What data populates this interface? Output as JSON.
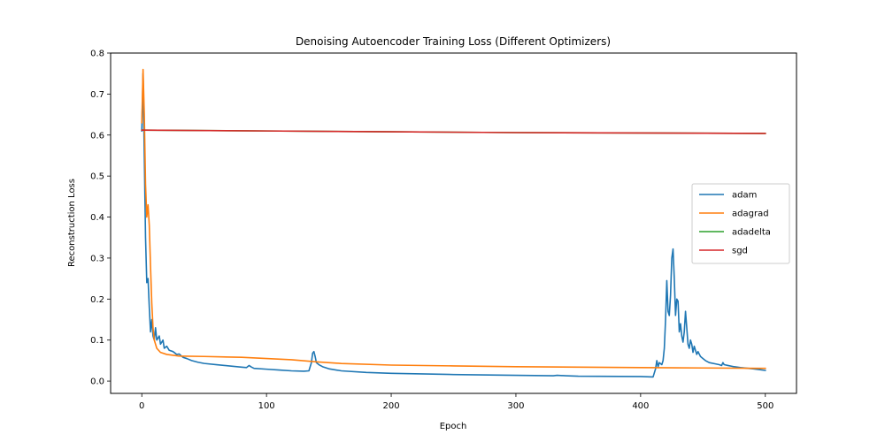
{
  "chart_data": {
    "type": "line",
    "title": "Denoising Autoencoder Training Loss (Different Optimizers)",
    "xlabel": "Epoch",
    "ylabel": "Reconstruction Loss",
    "xlim": [
      -25,
      525
    ],
    "ylim": [
      -0.03,
      0.8
    ],
    "xticks": [
      0,
      100,
      200,
      300,
      400,
      500
    ],
    "yticks": [
      0.0,
      0.1,
      0.2,
      0.3,
      0.4,
      0.5,
      0.6,
      0.7,
      0.8
    ],
    "x_tick_labels": [
      "0",
      "100",
      "200",
      "300",
      "400",
      "500"
    ],
    "y_tick_labels": [
      "0.0",
      "0.1",
      "0.2",
      "0.3",
      "0.4",
      "0.5",
      "0.6",
      "0.7",
      "0.8"
    ],
    "grid": false,
    "legend_position": "center-right",
    "series": [
      {
        "name": "adam",
        "color": "#1f77b4",
        "points": [
          [
            0,
            0.61
          ],
          [
            1,
            0.75
          ],
          [
            2,
            0.55
          ],
          [
            3,
            0.35
          ],
          [
            4,
            0.24
          ],
          [
            5,
            0.25
          ],
          [
            6,
            0.18
          ],
          [
            7,
            0.12
          ],
          [
            8,
            0.15
          ],
          [
            9,
            0.11
          ],
          [
            10,
            0.1
          ],
          [
            11,
            0.13
          ],
          [
            12,
            0.1
          ],
          [
            14,
            0.11
          ],
          [
            15,
            0.09
          ],
          [
            17,
            0.1
          ],
          [
            18,
            0.08
          ],
          [
            20,
            0.085
          ],
          [
            22,
            0.075
          ],
          [
            25,
            0.072
          ],
          [
            28,
            0.065
          ],
          [
            30,
            0.066
          ],
          [
            33,
            0.058
          ],
          [
            36,
            0.055
          ],
          [
            40,
            0.05
          ],
          [
            45,
            0.046
          ],
          [
            50,
            0.043
          ],
          [
            60,
            0.04
          ],
          [
            70,
            0.037
          ],
          [
            80,
            0.034
          ],
          [
            84,
            0.033
          ],
          [
            86,
            0.038
          ],
          [
            88,
            0.034
          ],
          [
            90,
            0.031
          ],
          [
            100,
            0.029
          ],
          [
            110,
            0.027
          ],
          [
            120,
            0.025
          ],
          [
            130,
            0.024
          ],
          [
            134,
            0.025
          ],
          [
            136,
            0.045
          ],
          [
            137,
            0.068
          ],
          [
            138,
            0.072
          ],
          [
            139,
            0.06
          ],
          [
            140,
            0.045
          ],
          [
            142,
            0.04
          ],
          [
            145,
            0.035
          ],
          [
            150,
            0.03
          ],
          [
            160,
            0.025
          ],
          [
            180,
            0.021
          ],
          [
            200,
            0.019
          ],
          [
            250,
            0.016
          ],
          [
            300,
            0.014
          ],
          [
            330,
            0.013
          ],
          [
            333,
            0.014
          ],
          [
            340,
            0.013
          ],
          [
            350,
            0.012
          ],
          [
            400,
            0.011
          ],
          [
            410,
            0.01
          ],
          [
            412,
            0.03
          ],
          [
            413,
            0.05
          ],
          [
            414,
            0.035
          ],
          [
            415,
            0.045
          ],
          [
            417,
            0.04
          ],
          [
            418,
            0.05
          ],
          [
            419,
            0.08
          ],
          [
            420,
            0.15
          ],
          [
            421,
            0.245
          ],
          [
            422,
            0.17
          ],
          [
            423,
            0.16
          ],
          [
            424,
            0.21
          ],
          [
            425,
            0.3
          ],
          [
            426,
            0.322
          ],
          [
            427,
            0.25
          ],
          [
            428,
            0.16
          ],
          [
            429,
            0.2
          ],
          [
            430,
            0.195
          ],
          [
            431,
            0.12
          ],
          [
            432,
            0.14
          ],
          [
            433,
            0.11
          ],
          [
            434,
            0.095
          ],
          [
            435,
            0.12
          ],
          [
            436,
            0.17
          ],
          [
            437,
            0.13
          ],
          [
            438,
            0.09
          ],
          [
            439,
            0.08
          ],
          [
            440,
            0.1
          ],
          [
            441,
            0.09
          ],
          [
            442,
            0.07
          ],
          [
            443,
            0.085
          ],
          [
            444,
            0.075
          ],
          [
            445,
            0.065
          ],
          [
            446,
            0.072
          ],
          [
            448,
            0.06
          ],
          [
            450,
            0.055
          ],
          [
            452,
            0.05
          ],
          [
            455,
            0.045
          ],
          [
            460,
            0.042
          ],
          [
            463,
            0.04
          ],
          [
            465,
            0.038
          ],
          [
            466,
            0.045
          ],
          [
            467,
            0.04
          ],
          [
            470,
            0.038
          ],
          [
            475,
            0.035
          ],
          [
            480,
            0.033
          ],
          [
            490,
            0.03
          ],
          [
            500,
            0.026
          ]
        ]
      },
      {
        "name": "adagrad",
        "color": "#ff7f0e",
        "points": [
          [
            0,
            0.63
          ],
          [
            1,
            0.76
          ],
          [
            2,
            0.65
          ],
          [
            3,
            0.48
          ],
          [
            4,
            0.4
          ],
          [
            5,
            0.43
          ],
          [
            6,
            0.38
          ],
          [
            7,
            0.28
          ],
          [
            8,
            0.19
          ],
          [
            9,
            0.13
          ],
          [
            10,
            0.1
          ],
          [
            12,
            0.08
          ],
          [
            15,
            0.07
          ],
          [
            20,
            0.065
          ],
          [
            30,
            0.061
          ],
          [
            50,
            0.06
          ],
          [
            80,
            0.058
          ],
          [
            100,
            0.055
          ],
          [
            120,
            0.052
          ],
          [
            140,
            0.047
          ],
          [
            160,
            0.043
          ],
          [
            200,
            0.039
          ],
          [
            250,
            0.037
          ],
          [
            300,
            0.035
          ],
          [
            350,
            0.034
          ],
          [
            400,
            0.033
          ],
          [
            450,
            0.032
          ],
          [
            500,
            0.031
          ]
        ]
      },
      {
        "name": "adadelta",
        "color": "#2ca02c",
        "points": [
          [
            0,
            0.612
          ],
          [
            100,
            0.61
          ],
          [
            200,
            0.608
          ],
          [
            300,
            0.606
          ],
          [
            400,
            0.605
          ],
          [
            500,
            0.604
          ]
        ]
      },
      {
        "name": "sgd",
        "color": "#d62728",
        "points": [
          [
            0,
            0.612
          ],
          [
            100,
            0.61
          ],
          [
            200,
            0.608
          ],
          [
            300,
            0.606
          ],
          [
            400,
            0.605
          ],
          [
            500,
            0.604
          ]
        ]
      }
    ]
  }
}
